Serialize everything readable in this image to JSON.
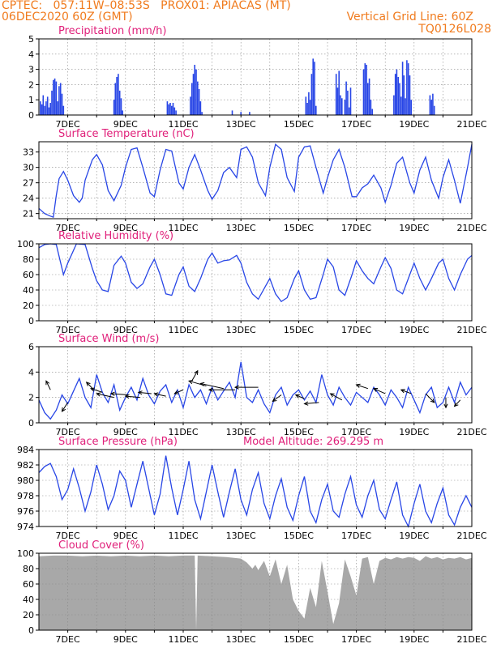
{
  "header": {
    "line1_left": "CPTEC:   057:11W–08:53S   PROX01: APIACAS (MT)",
    "line2_left": "06DEC2020 60Z (GMT)",
    "line2_right": "Vertical Grid Line: 60Z",
    "line3_right": "TQ0126L028"
  },
  "colors": {
    "header": "#f07b1e",
    "title": "#e0207a",
    "series": "#2846e6",
    "cloud": "#a8a8a8",
    "grid": "#888888"
  },
  "chart_data": [
    {
      "type": "bar",
      "title": "Precipitation (mm/h)",
      "x_tick_labels": [
        "7DEC",
        "9DEC",
        "11DEC",
        "13DEC",
        "15DEC",
        "17DEC",
        "19DEC",
        "21DEC"
      ],
      "xlim": [
        6,
        21
      ],
      "ylim": [
        0,
        5
      ],
      "y_ticks": [
        0,
        1,
        2,
        3,
        4,
        5
      ],
      "grid": true,
      "x": [
        6.05,
        6.1,
        6.15,
        6.2,
        6.25,
        6.3,
        6.35,
        6.4,
        6.45,
        6.5,
        6.55,
        6.6,
        6.65,
        6.7,
        6.75,
        6.8,
        6.85,
        8.6,
        8.65,
        8.7,
        8.75,
        8.8,
        8.85,
        8.9,
        10.45,
        10.5,
        10.55,
        10.6,
        10.65,
        10.7,
        10.75,
        11.25,
        11.3,
        11.35,
        11.4,
        11.45,
        11.5,
        11.55,
        11.6,
        11.65,
        12.7,
        13.0,
        13.3,
        15.25,
        15.3,
        15.35,
        15.4,
        15.45,
        15.5,
        15.55,
        15.6,
        16.3,
        16.35,
        16.4,
        16.45,
        16.5,
        16.6,
        16.65,
        16.7,
        16.75,
        16.8,
        17.25,
        17.3,
        17.35,
        17.4,
        17.45,
        17.5,
        17.55,
        18.3,
        18.35,
        18.4,
        18.45,
        18.5,
        18.55,
        18.6,
        18.65,
        18.7,
        18.75,
        18.8,
        18.85,
        18.9,
        19.55,
        19.6,
        19.65,
        19.7
      ],
      "values": [
        0.9,
        0.7,
        1.3,
        0.6,
        0.9,
        1.2,
        0.5,
        0.8,
        1.6,
        2.3,
        2.4,
        2.2,
        0.9,
        1.9,
        2.1,
        1.4,
        0.6,
        1.0,
        2.1,
        2.5,
        2.7,
        1.6,
        1.1,
        0.3,
        0.9,
        0.7,
        0.8,
        0.6,
        0.8,
        0.5,
        0.3,
        1.2,
        2.1,
        2.7,
        3.3,
        3.0,
        2.2,
        1.7,
        0.9,
        0.2,
        0.3,
        0.2,
        0.2,
        1.2,
        0.8,
        1.5,
        1.0,
        2.7,
        3.7,
        3.5,
        0.6,
        2.7,
        1.8,
        2.9,
        1.3,
        1.1,
        1.0,
        2.2,
        1.6,
        0.5,
        1.8,
        3.0,
        3.4,
        3.3,
        2.1,
        2.4,
        1.0,
        0.4,
        1.3,
        2.7,
        3.0,
        2.5,
        2.1,
        1.2,
        3.5,
        2.6,
        1.1,
        3.6,
        3.4,
        2.6,
        1.0,
        1.3,
        1.0,
        1.4,
        0.6
      ]
    },
    {
      "type": "line",
      "title": "Surface Temperature (nC)",
      "x_tick_labels": [
        "7DEC",
        "9DEC",
        "11DEC",
        "13DEC",
        "15DEC",
        "17DEC",
        "19DEC",
        "21DEC"
      ],
      "xlim": [
        6,
        21
      ],
      "ylim": [
        20,
        35
      ],
      "y_ticks": [
        21,
        24,
        27,
        30,
        33
      ],
      "grid": true,
      "x": [
        6,
        6.2,
        6.4,
        6.5,
        6.6,
        6.7,
        6.85,
        7.0,
        7.2,
        7.4,
        7.5,
        7.6,
        7.85,
        8.0,
        8.2,
        8.4,
        8.6,
        8.85,
        9.0,
        9.2,
        9.4,
        9.6,
        9.85,
        10.0,
        10.2,
        10.4,
        10.6,
        10.85,
        11.0,
        11.2,
        11.4,
        11.6,
        11.85,
        12.0,
        12.2,
        12.4,
        12.6,
        12.85,
        13.0,
        13.2,
        13.4,
        13.6,
        13.85,
        14.0,
        14.2,
        14.4,
        14.6,
        14.85,
        15.0,
        15.2,
        15.4,
        15.6,
        15.85,
        16.0,
        16.2,
        16.4,
        16.6,
        16.85,
        17.0,
        17.2,
        17.4,
        17.6,
        17.85,
        18.0,
        18.2,
        18.4,
        18.6,
        18.85,
        19.0,
        19.2,
        19.4,
        19.6,
        19.85,
        20.0,
        20.2,
        20.4,
        20.6,
        20.85,
        21.0
      ],
      "values": [
        22.0,
        21.0,
        20.5,
        20.3,
        24.5,
        27.8,
        29.2,
        27.5,
        24.5,
        23.2,
        24.0,
        27.5,
        31.5,
        32.5,
        30.5,
        25.5,
        23.5,
        26.5,
        30.0,
        33.5,
        33.8,
        30.0,
        25.0,
        24.3,
        29.5,
        33.5,
        33.2,
        27.0,
        25.8,
        30.0,
        32.5,
        29.5,
        25.5,
        23.8,
        25.5,
        29.0,
        30.0,
        28.0,
        33.5,
        34.0,
        32.0,
        27.0,
        24.5,
        30.0,
        34.5,
        33.5,
        28.0,
        25.3,
        32.0,
        34.0,
        34.2,
        30.0,
        25.0,
        28.0,
        31.5,
        33.5,
        30.0,
        24.3,
        24.3,
        26.0,
        26.8,
        28.5,
        26.0,
        23.2,
        26.5,
        30.8,
        32.0,
        27.0,
        25.0,
        29.5,
        32.0,
        27.5,
        24.0,
        28.0,
        31.5,
        27.5,
        23.0,
        30.0,
        34.5
      ]
    },
    {
      "type": "line",
      "title": "Relative Humidity (%)",
      "x_tick_labels": [
        "7DEC",
        "9DEC",
        "11DEC",
        "13DEC",
        "15DEC",
        "17DEC",
        "19DEC",
        "21DEC"
      ],
      "xlim": [
        6,
        21
      ],
      "ylim": [
        0,
        100
      ],
      "y_ticks": [
        0,
        20,
        40,
        60,
        80,
        100
      ],
      "grid": true,
      "x": [
        6,
        6.2,
        6.4,
        6.6,
        6.85,
        7.0,
        7.3,
        7.6,
        7.85,
        8.0,
        8.2,
        8.4,
        8.6,
        8.85,
        9.0,
        9.2,
        9.4,
        9.6,
        9.85,
        10.0,
        10.2,
        10.4,
        10.6,
        10.85,
        11.0,
        11.2,
        11.4,
        11.6,
        11.85,
        12.0,
        12.2,
        12.4,
        12.6,
        12.85,
        13.0,
        13.2,
        13.4,
        13.6,
        13.85,
        14.0,
        14.2,
        14.4,
        14.6,
        14.85,
        15.0,
        15.2,
        15.4,
        15.6,
        15.85,
        16.0,
        16.2,
        16.4,
        16.6,
        16.85,
        17.0,
        17.2,
        17.4,
        17.6,
        17.85,
        18.0,
        18.2,
        18.4,
        18.6,
        18.85,
        19.0,
        19.2,
        19.4,
        19.6,
        19.85,
        20.0,
        20.2,
        20.4,
        20.6,
        20.85,
        21.0
      ],
      "values": [
        95,
        99,
        100,
        99,
        60,
        75,
        100,
        99,
        68,
        52,
        40,
        38,
        72,
        84,
        75,
        50,
        42,
        48,
        70,
        80,
        60,
        35,
        33,
        60,
        70,
        45,
        38,
        55,
        80,
        88,
        75,
        78,
        79,
        85,
        75,
        50,
        35,
        28,
        45,
        55,
        35,
        25,
        30,
        55,
        65,
        40,
        28,
        30,
        60,
        80,
        70,
        40,
        33,
        60,
        78,
        65,
        55,
        48,
        70,
        82,
        68,
        40,
        35,
        60,
        75,
        55,
        40,
        55,
        75,
        80,
        55,
        40,
        60,
        80,
        85
      ]
    },
    {
      "type": "line",
      "title": "Surface Wind (m/s)",
      "x_tick_labels": [
        "7DEC",
        "9DEC",
        "11DEC",
        "13DEC",
        "15DEC",
        "17DEC",
        "19DEC",
        "21DEC"
      ],
      "xlim": [
        6,
        21
      ],
      "ylim": [
        0,
        6
      ],
      "y_ticks": [
        0,
        2,
        4,
        6
      ],
      "grid": true,
      "x": [
        6,
        6.2,
        6.4,
        6.6,
        6.8,
        7.0,
        7.2,
        7.4,
        7.6,
        7.8,
        8.0,
        8.2,
        8.4,
        8.6,
        8.8,
        9.0,
        9.2,
        9.4,
        9.6,
        9.8,
        10.0,
        10.2,
        10.4,
        10.6,
        10.8,
        11.0,
        11.2,
        11.4,
        11.6,
        11.8,
        12.0,
        12.2,
        12.4,
        12.6,
        12.8,
        13.0,
        13.2,
        13.4,
        13.6,
        13.8,
        14.0,
        14.2,
        14.4,
        14.6,
        14.8,
        15.0,
        15.2,
        15.4,
        15.6,
        15.8,
        16.0,
        16.2,
        16.4,
        16.6,
        16.8,
        17.0,
        17.2,
        17.4,
        17.6,
        17.8,
        18.0,
        18.2,
        18.4,
        18.6,
        18.8,
        19.0,
        19.2,
        19.4,
        19.6,
        19.8,
        20.0,
        20.2,
        20.4,
        20.6,
        20.8,
        21.0
      ],
      "values": [
        1.8,
        0.8,
        0.3,
        1.0,
        2.2,
        1.5,
        2.5,
        3.5,
        2.0,
        1.2,
        3.8,
        2.4,
        1.6,
        3.0,
        1.0,
        2.0,
        2.8,
        1.8,
        3.5,
        2.2,
        1.5,
        2.5,
        3.0,
        1.6,
        2.6,
        1.2,
        3.0,
        2.0,
        2.6,
        1.5,
        2.8,
        1.8,
        2.5,
        3.2,
        2.0,
        4.8,
        2.0,
        1.6,
        2.6,
        1.5,
        0.8,
        2.2,
        2.8,
        1.4,
        2.2,
        2.6,
        1.8,
        2.5,
        1.6,
        3.8,
        2.2,
        1.4,
        2.8,
        2.0,
        1.4,
        2.4,
        2.0,
        1.6,
        2.8,
        2.2,
        1.4,
        2.6,
        2.0,
        1.2,
        2.8,
        1.8,
        0.8,
        2.2,
        2.8,
        1.2,
        1.6,
        2.8,
        1.6,
        3.2,
        2.2,
        2.8
      ],
      "arrows": [
        {
          "x": 6.4,
          "y": 2.6,
          "dx": -0.15,
          "dy": 0.7
        },
        {
          "x": 7.0,
          "y": 1.6,
          "dx": -0.2,
          "dy": -0.7
        },
        {
          "x": 7.9,
          "y": 2.6,
          "dx": -0.25,
          "dy": 0.6
        },
        {
          "x": 8.2,
          "y": 2.4,
          "dx": -0.4,
          "dy": 0.3
        },
        {
          "x": 8.6,
          "y": 2.0,
          "dx": -0.6,
          "dy": 0.3
        },
        {
          "x": 9.1,
          "y": 2.2,
          "dx": -0.6,
          "dy": 0.1
        },
        {
          "x": 9.5,
          "y": 2.0,
          "dx": -0.5,
          "dy": 0.1
        },
        {
          "x": 9.9,
          "y": 2.3,
          "dx": -0.45,
          "dy": 0.1
        },
        {
          "x": 10.4,
          "y": 2.1,
          "dx": -0.4,
          "dy": 0.2
        },
        {
          "x": 11.0,
          "y": 2.6,
          "dx": -0.3,
          "dy": -0.3
        },
        {
          "x": 11.3,
          "y": 3.3,
          "dx": 0.2,
          "dy": 0.8
        },
        {
          "x": 11.8,
          "y": 2.9,
          "dx": -0.6,
          "dy": 0.4
        },
        {
          "x": 12.4,
          "y": 2.7,
          "dx": -0.8,
          "dy": 0.4
        },
        {
          "x": 12.8,
          "y": 2.6,
          "dx": -0.9,
          "dy": 0.0
        },
        {
          "x": 13.6,
          "y": 2.8,
          "dx": -0.8,
          "dy": 0.0
        },
        {
          "x": 14.4,
          "y": 2.2,
          "dx": -0.3,
          "dy": -0.5
        },
        {
          "x": 15.2,
          "y": 1.9,
          "dx": -0.3,
          "dy": 0.3
        },
        {
          "x": 15.7,
          "y": 1.6,
          "dx": -0.5,
          "dy": -0.1
        },
        {
          "x": 16.5,
          "y": 1.8,
          "dx": -0.4,
          "dy": 0.5
        },
        {
          "x": 17.4,
          "y": 2.7,
          "dx": -0.4,
          "dy": 0.3
        },
        {
          "x": 18.0,
          "y": 2.3,
          "dx": -0.4,
          "dy": 0.4
        },
        {
          "x": 18.9,
          "y": 2.3,
          "dx": -0.35,
          "dy": 0.3
        },
        {
          "x": 19.4,
          "y": 2.3,
          "dx": 0.3,
          "dy": -0.7
        },
        {
          "x": 20.1,
          "y": 2.0,
          "dx": 0.0,
          "dy": -0.8
        },
        {
          "x": 20.6,
          "y": 1.8,
          "dx": -0.2,
          "dy": -0.5
        }
      ]
    },
    {
      "type": "line",
      "title": "Surface Pressure (hPa)",
      "annotation": "Model Altitude: 269.295 m",
      "x_tick_labels": [
        "7DEC",
        "9DEC",
        "11DEC",
        "13DEC",
        "15DEC",
        "17DEC",
        "19DEC",
        "21DEC"
      ],
      "xlim": [
        6,
        21
      ],
      "ylim": [
        974,
        984
      ],
      "y_ticks": [
        974,
        976,
        978,
        980,
        982,
        984
      ],
      "grid": true,
      "x": [
        6,
        6.2,
        6.4,
        6.6,
        6.8,
        7.0,
        7.2,
        7.4,
        7.6,
        7.8,
        8.0,
        8.2,
        8.4,
        8.6,
        8.8,
        9.0,
        9.2,
        9.4,
        9.6,
        9.8,
        10.0,
        10.2,
        10.4,
        10.6,
        10.8,
        11.0,
        11.2,
        11.4,
        11.6,
        11.8,
        12.0,
        12.2,
        12.4,
        12.6,
        12.8,
        13.0,
        13.2,
        13.4,
        13.6,
        13.8,
        14.0,
        14.2,
        14.4,
        14.6,
        14.8,
        15.0,
        15.2,
        15.4,
        15.6,
        15.8,
        16.0,
        16.2,
        16.4,
        16.6,
        16.8,
        17.0,
        17.2,
        17.4,
        17.6,
        17.8,
        18.0,
        18.2,
        18.4,
        18.6,
        18.8,
        19.0,
        19.2,
        19.4,
        19.6,
        19.8,
        20.0,
        20.2,
        20.4,
        20.6,
        20.8,
        21.0
      ],
      "values": [
        981.0,
        981.8,
        982.2,
        980.5,
        977.5,
        978.8,
        981.5,
        979.0,
        976.0,
        978.5,
        982.0,
        979.5,
        976.2,
        978.0,
        981.2,
        980.0,
        976.5,
        979.5,
        982.5,
        979.0,
        975.5,
        978.2,
        983.2,
        979.0,
        975.5,
        978.8,
        982.5,
        977.5,
        975.0,
        978.5,
        982.0,
        978.5,
        975.2,
        978.5,
        981.5,
        977.5,
        975.5,
        978.8,
        981.0,
        977.0,
        975.0,
        978.0,
        980.2,
        976.5,
        974.8,
        978.0,
        980.5,
        976.0,
        974.5,
        977.5,
        979.5,
        976.0,
        975.2,
        978.2,
        980.5,
        976.8,
        975.2,
        978.0,
        980.0,
        976.2,
        975.0,
        977.5,
        979.8,
        975.5,
        974.0,
        977.0,
        979.5,
        976.0,
        974.5,
        977.0,
        979.0,
        975.5,
        974.2,
        976.5,
        978.0,
        976.5
      ]
    },
    {
      "type": "area",
      "title": "Cloud Cover (%)",
      "x_tick_labels": [
        "7DEC",
        "9DEC",
        "11DEC",
        "13DEC",
        "15DEC",
        "17DEC",
        "19DEC",
        "21DEC"
      ],
      "xlim": [
        6,
        21
      ],
      "ylim": [
        0,
        100
      ],
      "y_ticks": [
        0,
        20,
        40,
        60,
        80,
        100
      ],
      "grid": true,
      "x": [
        6,
        6.5,
        7,
        7.5,
        8,
        8.5,
        9,
        9.5,
        10,
        10.5,
        11,
        11.4,
        11.45,
        11.5,
        12,
        12.5,
        13,
        13.2,
        13.4,
        13.5,
        13.6,
        13.8,
        14.0,
        14.2,
        14.4,
        14.6,
        14.8,
        15.0,
        15.2,
        15.4,
        15.6,
        15.8,
        16.0,
        16.2,
        16.4,
        16.6,
        16.8,
        17.0,
        17.2,
        17.4,
        17.6,
        17.8,
        18.0,
        18.2,
        18.4,
        18.6,
        18.8,
        19.0,
        19.2,
        19.4,
        19.6,
        19.8,
        20.0,
        20.2,
        20.4,
        20.6,
        20.8,
        21.0
      ],
      "values": [
        96,
        97,
        97,
        96,
        97,
        96,
        97,
        96,
        97,
        96,
        97,
        97,
        0,
        97,
        96,
        95,
        93,
        88,
        80,
        85,
        78,
        90,
        70,
        92,
        60,
        85,
        40,
        25,
        15,
        55,
        30,
        90,
        50,
        8,
        35,
        92,
        70,
        45,
        93,
        95,
        60,
        90,
        94,
        92,
        95,
        93,
        95,
        94,
        90,
        96,
        93,
        95,
        92,
        94,
        93,
        95,
        92,
        94
      ]
    }
  ]
}
